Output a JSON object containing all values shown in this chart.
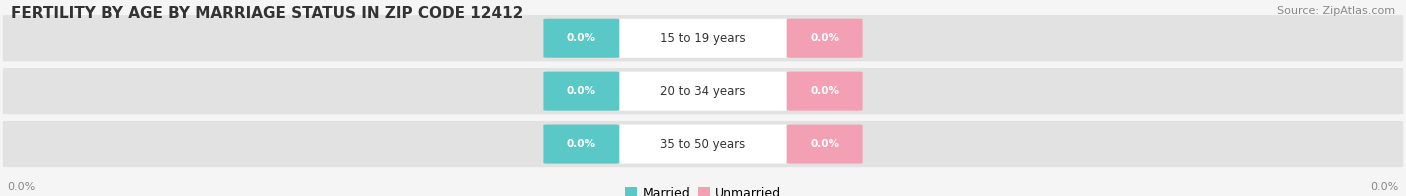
{
  "title": "FERTILITY BY AGE BY MARRIAGE STATUS IN ZIP CODE 12412",
  "source": "Source: ZipAtlas.com",
  "age_groups": [
    "15 to 19 years",
    "20 to 34 years",
    "35 to 50 years"
  ],
  "married_values": [
    0.0,
    0.0,
    0.0
  ],
  "unmarried_values": [
    0.0,
    0.0,
    0.0
  ],
  "married_color": "#5bc8c8",
  "unmarried_color": "#f4a0b4",
  "bar_bg_color": "#e2e2e2",
  "background_color": "#f5f5f5",
  "title_fontsize": 11,
  "source_fontsize": 8,
  "label_fontsize": 8.5,
  "value_fontsize": 7.5,
  "legend_fontsize": 9
}
